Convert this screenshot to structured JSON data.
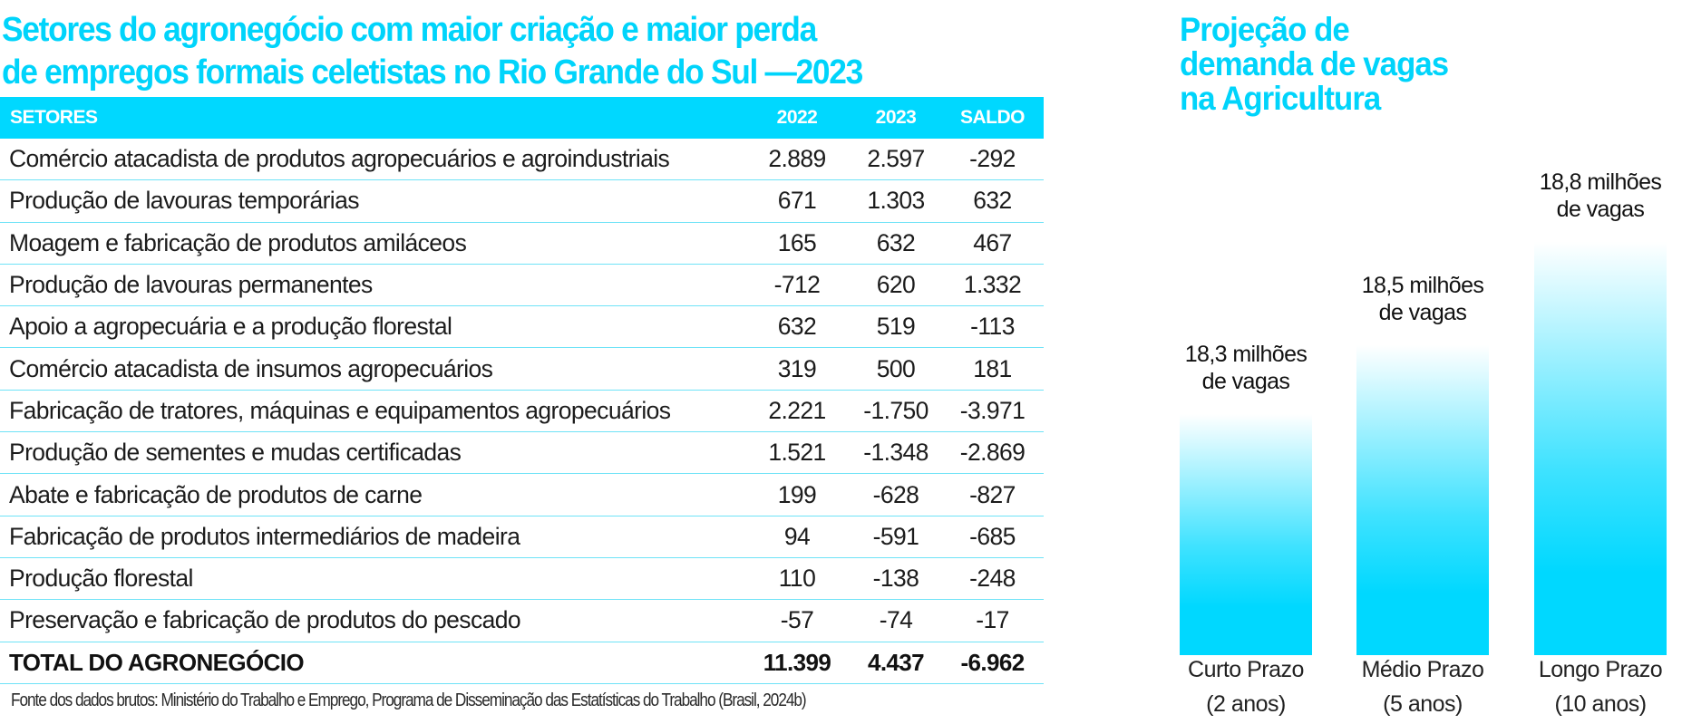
{
  "table": {
    "title_lines": [
      "Setores do agronegócio com maior criação e maior perda",
      "de empregos formais celetistas no Rio Grande do Sul —2023"
    ],
    "columns": [
      "SETORES",
      "2022",
      "2023",
      "SALDO"
    ],
    "rows": [
      {
        "setor": "Comércio atacadista de produtos agropecuários e agroindustriais",
        "y2022": "2.889",
        "y2023": "2.597",
        "saldo": "-292"
      },
      {
        "setor": "Produção de lavouras temporárias",
        "y2022": "671",
        "y2023": "1.303",
        "saldo": "632"
      },
      {
        "setor": "Moagem e fabricação de produtos amiláceos",
        "y2022": "165",
        "y2023": "632",
        "saldo": "467"
      },
      {
        "setor": "Produção de lavouras permanentes",
        "y2022": "-712",
        "y2023": "620",
        "saldo": "1.332"
      },
      {
        "setor": "Apoio a agropecuária e a produção florestal",
        "y2022": "632",
        "y2023": "519",
        "saldo": "-113"
      },
      {
        "setor": "Comércio atacadista de insumos agropecuários",
        "y2022": "319",
        "y2023": "500",
        "saldo": "181"
      },
      {
        "setor": "Fabricação de tratores, máquinas e equipamentos agropecuários",
        "y2022": "2.221",
        "y2023": "-1.750",
        "saldo": "-3.971"
      },
      {
        "setor": "Produção de sementes e mudas certificadas",
        "y2022": "1.521",
        "y2023": "-1.348",
        "saldo": "-2.869"
      },
      {
        "setor": "Abate e fabricação de produtos de carne",
        "y2022": "199",
        "y2023": "-628",
        "saldo": "-827"
      },
      {
        "setor": "Fabricação de produtos intermediários de madeira",
        "y2022": "94",
        "y2023": "-591",
        "saldo": "-685"
      },
      {
        "setor": "Produção florestal",
        "y2022": "110",
        "y2023": "-138",
        "saldo": "-248"
      },
      {
        "setor": "Preservação e fabricação de produtos do pescado",
        "y2022": "-57",
        "y2023": "-74",
        "saldo": "-17"
      }
    ],
    "total": {
      "setor": "TOTAL DO AGRONEGÓCIO",
      "y2022": "11.399",
      "y2023": "4.437",
      "saldo": "-6.962"
    },
    "source": "Fonte dos dados brutos: Ministério do Trabalho e Emprego, Programa de Disseminação das Estatísticas do Trabalho (Brasil, 2024b)"
  },
  "colors": {
    "accent": "#00d8ff",
    "title": "#00d4fb",
    "row_divider": "#6fe3f7"
  },
  "chart_data": {
    "type": "bar",
    "title": "Projeção de demanda de vagas na Agricultura",
    "title_lines": [
      "Projeção de",
      "demanda de vagas",
      "na Agricultura"
    ],
    "categories": [
      "Curto Prazo (2 anos)",
      "Médio Prazo (5 anos)",
      "Longo Prazo (10 anos)"
    ],
    "category_lines": [
      [
        "Curto Prazo",
        "(2 anos)"
      ],
      [
        "Médio Prazo",
        "(5 anos)"
      ],
      [
        "Longo Prazo",
        "(10 anos)"
      ]
    ],
    "values": [
      18.3,
      18.5,
      18.8
    ],
    "unit": "milhões de vagas",
    "data_labels": [
      [
        "18,3 milhões",
        "de vagas"
      ],
      [
        "18,5 milhões",
        "de vagas"
      ],
      [
        "18,8 milhões",
        "de vagas"
      ]
    ],
    "xlabel": "",
    "ylabel": "",
    "ylim": [
      17.6,
      18.8
    ],
    "grid": false,
    "legend": "none"
  }
}
